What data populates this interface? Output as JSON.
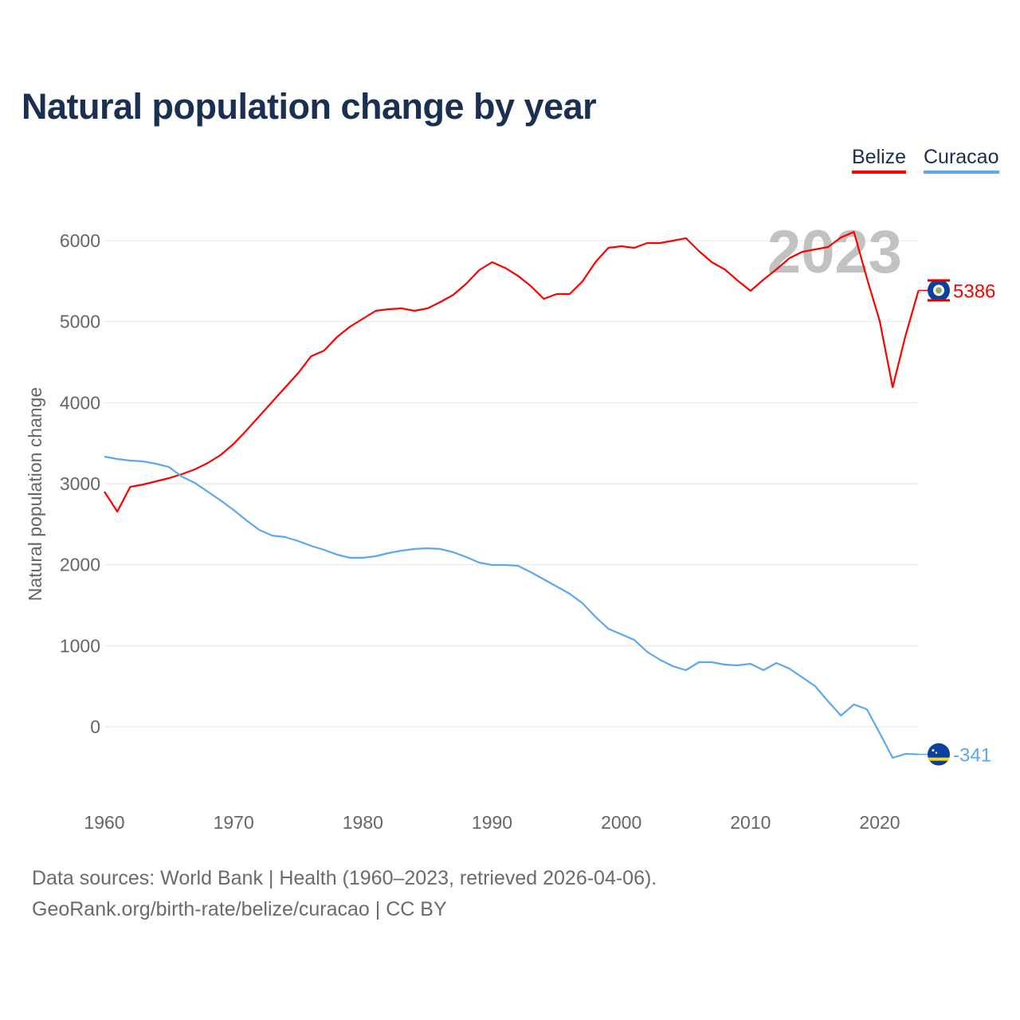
{
  "chart_data": {
    "type": "line",
    "title": "Natural population change by year",
    "xlabel": "",
    "ylabel": "Natural population change",
    "xlim": [
      1960,
      2023
    ],
    "ylim": [
      -800,
      6500
    ],
    "yticks": [
      0,
      1000,
      2000,
      3000,
      4000,
      5000,
      6000
    ],
    "xticks": [
      1960,
      1970,
      1980,
      1990,
      2000,
      2010,
      2020
    ],
    "grid": true,
    "legend_position": "top-right",
    "year_label": "2023",
    "x": [
      1960,
      1961,
      1962,
      1963,
      1964,
      1965,
      1966,
      1967,
      1968,
      1969,
      1970,
      1971,
      1972,
      1973,
      1974,
      1975,
      1976,
      1977,
      1978,
      1979,
      1980,
      1981,
      1982,
      1983,
      1984,
      1985,
      1986,
      1987,
      1988,
      1989,
      1990,
      1991,
      1992,
      1993,
      1994,
      1995,
      1996,
      1997,
      1998,
      1999,
      2000,
      2001,
      2002,
      2003,
      2004,
      2005,
      2006,
      2007,
      2008,
      2009,
      2010,
      2011,
      2012,
      2013,
      2014,
      2015,
      2016,
      2017,
      2018,
      2019,
      2020,
      2021,
      2022,
      2023
    ],
    "series": [
      {
        "name": "Belize",
        "color": "#ff0000",
        "end_label": "5386",
        "values": [
          2902,
          2656,
          2961,
          2990,
          3030,
          3069,
          3118,
          3177,
          3256,
          3354,
          3492,
          3659,
          3836,
          4013,
          4190,
          4367,
          4574,
          4643,
          4810,
          4938,
          5036,
          5134,
          5154,
          5164,
          5134,
          5164,
          5243,
          5331,
          5469,
          5636,
          5734,
          5665,
          5567,
          5439,
          5282,
          5341,
          5341,
          5498,
          5734,
          5911,
          5931,
          5911,
          5970,
          5970,
          6000,
          6030,
          5872,
          5734,
          5646,
          5508,
          5380,
          5518,
          5646,
          5783,
          5862,
          5892,
          5921,
          6039,
          6108,
          5538,
          5006,
          4190,
          4830,
          5386
        ]
      },
      {
        "name": "Curacao",
        "color": "#5ea7ef",
        "end_label": "-341",
        "values": [
          3334,
          3305,
          3285,
          3275,
          3246,
          3206,
          3088,
          3010,
          2902,
          2793,
          2675,
          2547,
          2429,
          2360,
          2341,
          2292,
          2233,
          2184,
          2125,
          2085,
          2085,
          2105,
          2144,
          2174,
          2194,
          2203,
          2194,
          2154,
          2095,
          2026,
          1997,
          1997,
          1987,
          1908,
          1820,
          1731,
          1643,
          1525,
          1357,
          1210,
          1141,
          1072,
          925,
          826,
          747,
          698,
          797,
          797,
          767,
          757,
          777,
          698,
          787,
          718,
          610,
          502,
          315,
          138,
          275,
          216,
          -80,
          -384,
          -334,
          -341
        ]
      }
    ]
  },
  "legend": {
    "belize": "Belize",
    "curacao": "Curacao"
  },
  "footer": {
    "source": "Data sources: World Bank | Health (1960–2023, retrieved 2026-04-06).",
    "credit": "GeoRank.org/birth-rate/belize/curacao | CC BY"
  }
}
